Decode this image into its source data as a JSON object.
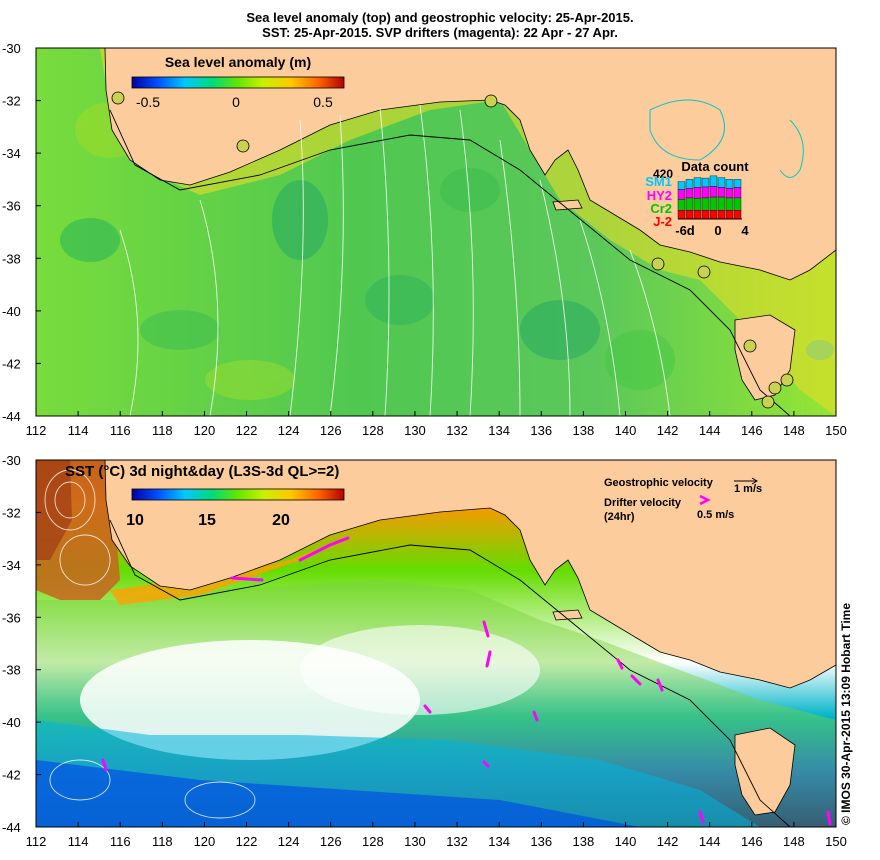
{
  "titles": {
    "line1": "Sea level anomaly (top) and geostrophic velocity: 25-Apr-2015.",
    "line2": "SST: 25-Apr-2015. SVP drifters (magenta): 22 Apr - 27 Apr."
  },
  "top_panel": {
    "colorbar_title": "Sea level anomaly (m)",
    "colorbar_ticks": [
      "-0.5",
      "0",
      "0.5"
    ],
    "y_ticks": [
      "-30",
      "-32",
      "-34",
      "-36",
      "-38",
      "-40",
      "-42",
      "-44"
    ],
    "x_ticks": [
      "112",
      "114",
      "116",
      "118",
      "120",
      "122",
      "124",
      "126",
      "128",
      "130",
      "132",
      "134",
      "136",
      "138",
      "140",
      "142",
      "144",
      "146",
      "148",
      "150"
    ],
    "data_count": {
      "title": "Data count",
      "max_label": "420",
      "sat_labels": [
        {
          "name": "SM1",
          "color": "#00c8ff"
        },
        {
          "name": "HY2",
          "color": "#ff00ff"
        },
        {
          "name": "Cr2",
          "color": "#00c800"
        },
        {
          "name": "J-2",
          "color": "#ff0000"
        }
      ],
      "x_labels": [
        "-6d",
        "0",
        "4"
      ],
      "bars": [
        {
          "j2": 0.2,
          "cr2": 0.25,
          "hy2": 0.22,
          "sm1": 0.18
        },
        {
          "j2": 0.2,
          "cr2": 0.28,
          "hy2": 0.22,
          "sm1": 0.2
        },
        {
          "j2": 0.2,
          "cr2": 0.27,
          "hy2": 0.25,
          "sm1": 0.22
        },
        {
          "j2": 0.2,
          "cr2": 0.28,
          "hy2": 0.25,
          "sm1": 0.2
        },
        {
          "j2": 0.2,
          "cr2": 0.3,
          "hy2": 0.24,
          "sm1": 0.24
        },
        {
          "j2": 0.2,
          "cr2": 0.3,
          "hy2": 0.22,
          "sm1": 0.22
        },
        {
          "j2": 0.2,
          "cr2": 0.28,
          "hy2": 0.22,
          "sm1": 0.2
        },
        {
          "j2": 0.2,
          "cr2": 0.28,
          "hy2": 0.24,
          "sm1": 0.18
        }
      ]
    }
  },
  "bottom_panel": {
    "sst_title": "SST (°C) 3d night&day (L3S-3d QL>=2)",
    "colorbar_ticks": [
      "10",
      "15",
      "20"
    ],
    "geo_velocity_label": "Geostrophic velocity",
    "geo_velocity_scale": "1 m/s",
    "drifter_label_line1": "Drifter velocity",
    "drifter_label_line2": "(24hr)",
    "drifter_scale": "0.5 m/s",
    "y_ticks": [
      "-30",
      "-32",
      "-34",
      "-36",
      "-38",
      "-40",
      "-42",
      "-44"
    ],
    "x_ticks": [
      "112",
      "114",
      "116",
      "118",
      "120",
      "122",
      "124",
      "126",
      "128",
      "130",
      "132",
      "134",
      "136",
      "138",
      "140",
      "142",
      "144",
      "146",
      "148",
      "150"
    ]
  },
  "credit": "© IMOS 30-Apr-2015 13:09 Hobart Time",
  "colors": {
    "land": "#fccc9c",
    "sla_colormap": [
      "#0000a0",
      "#0050ff",
      "#00c8ff",
      "#00dc78",
      "#64e600",
      "#c8f000",
      "#ffc800",
      "#ff6400",
      "#b40000"
    ],
    "sst_colormap": [
      "#0000a0",
      "#0050ff",
      "#00c8ff",
      "#00dc78",
      "#64e600",
      "#c8f000",
      "#ffc800",
      "#ff6400",
      "#b40000"
    ],
    "drifter": "#ff00ff"
  }
}
